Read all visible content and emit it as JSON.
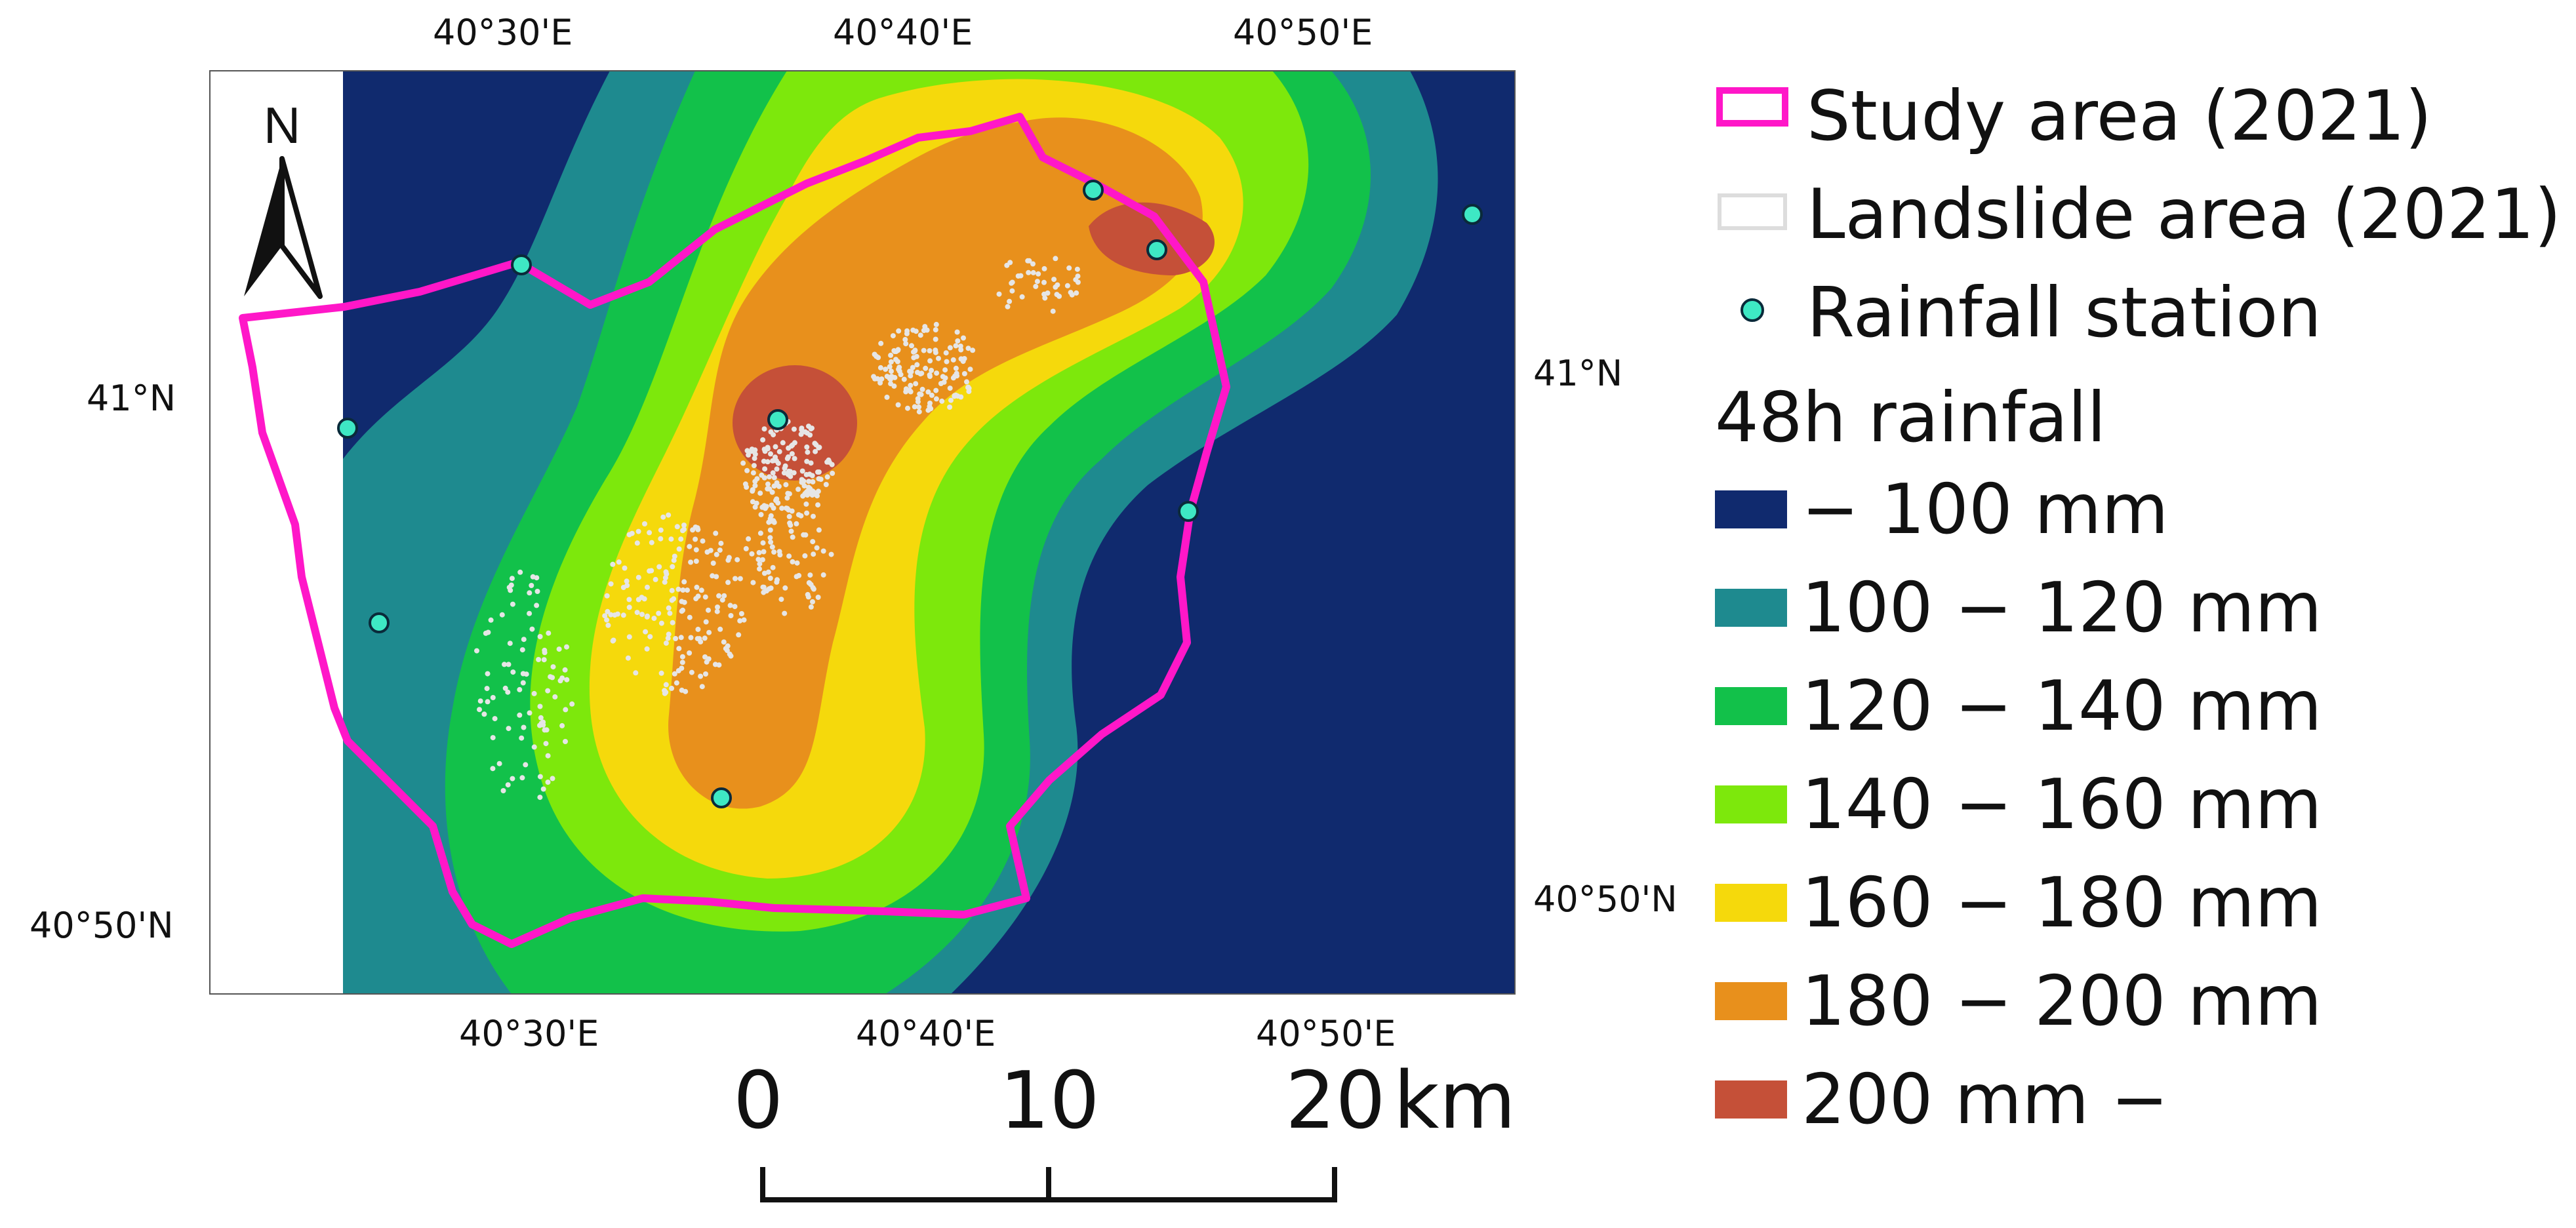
{
  "map": {
    "north_label": "N",
    "top_ticks": [
      "40°30'E",
      "40°40'E",
      "40°50'E"
    ],
    "bottom_ticks": [
      "40°30'E",
      "40°40'E",
      "40°50'E"
    ],
    "left_ticks": [
      "41°N",
      "40°50'N"
    ],
    "right_ticks": [
      "41°N",
      "40°50'N"
    ]
  },
  "legend": {
    "study_area": "Study area (2021)",
    "landslide_area": "Landslide area (2021)",
    "rainfall_station": "Rainfall station",
    "rainfall_title": "48h rainfall",
    "classes": [
      {
        "label": "− 100 mm",
        "color": "#102a6e"
      },
      {
        "label": "100 − 120 mm",
        "color": "#1e8a8f"
      },
      {
        "label": "120 − 140 mm",
        "color": "#12c14a"
      },
      {
        "label": "140 − 160 mm",
        "color": "#7de80c"
      },
      {
        "label": "160 − 180 mm",
        "color": "#f5d90c"
      },
      {
        "label": "180 − 200 mm",
        "color": "#e8901c"
      },
      {
        "label": "200 mm −",
        "color": "#c55038"
      }
    ]
  },
  "colors": {
    "study_area": "#ff17c8",
    "landslide": "#e6e6e6",
    "station": "#3ee8c4"
  },
  "scale_bar": {
    "labels": [
      "0",
      "10",
      "20"
    ],
    "unit": "km"
  }
}
